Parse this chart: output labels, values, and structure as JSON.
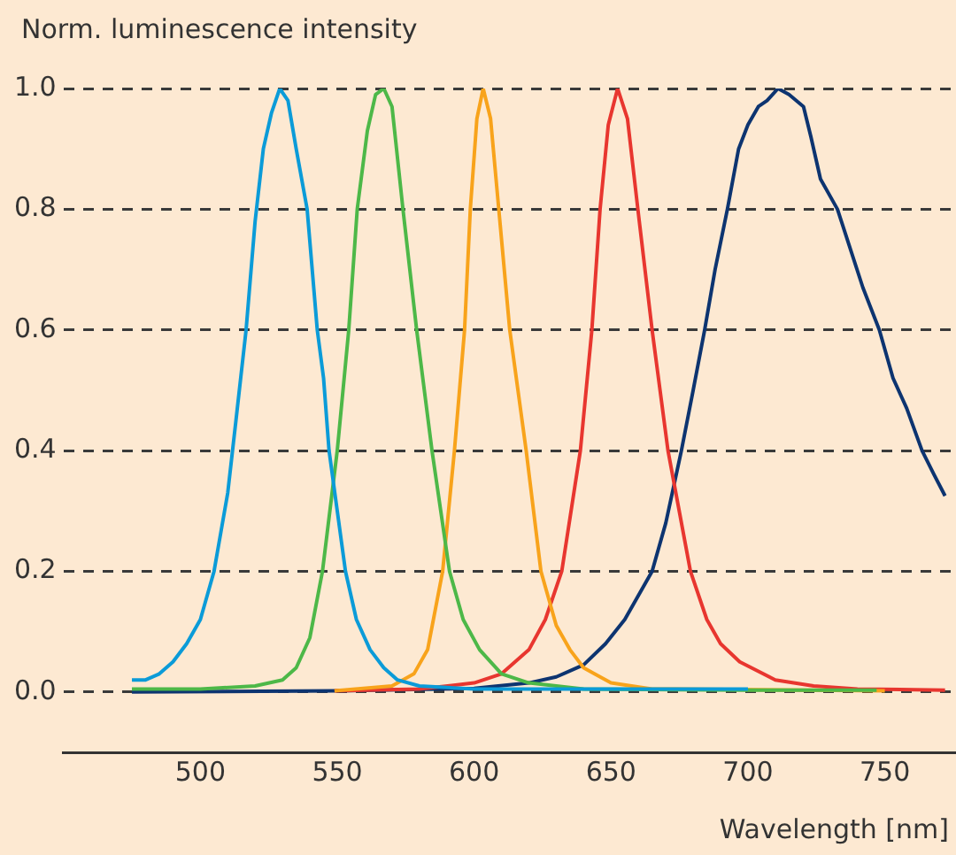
{
  "chart_data": {
    "type": "line",
    "xlabel": "Wavelength [nm]",
    "ylabel": "Norm. luminescence intensity",
    "xlim": [
      450,
      776
    ],
    "ylim": [
      -0.1,
      1.0
    ],
    "xticks": [
      500,
      550,
      600,
      650,
      700,
      750
    ],
    "yticks": [
      {
        "value": 0,
        "label": "0.0"
      },
      {
        "value": 0.2,
        "label": "0.2"
      },
      {
        "value": 0.4,
        "label": "0.4"
      },
      {
        "value": 0.6,
        "label": "0.6"
      },
      {
        "value": 0.8,
        "label": "0.8"
      },
      {
        "value": 1,
        "label": "1.0"
      }
    ],
    "grid": "y",
    "legend": false,
    "marker": "none",
    "line_style": "solid",
    "series": [
      {
        "color": "#0b9bd8",
        "x": [
          475,
          480,
          485,
          490,
          495,
          500,
          505,
          510,
          513,
          516.7,
          520,
          523,
          526,
          529,
          532,
          535,
          539,
          542.7,
          545,
          547,
          550,
          553,
          557,
          562,
          567,
          572,
          580,
          600,
          700
        ],
        "values": [
          0.02,
          0.02,
          0.03,
          0.05,
          0.08,
          0.12,
          0.2,
          0.33,
          0.45,
          0.6,
          0.78,
          0.9,
          0.96,
          1.0,
          0.98,
          0.9,
          0.8,
          0.6,
          0.52,
          0.4,
          0.3,
          0.2,
          0.12,
          0.07,
          0.04,
          0.02,
          0.01,
          0.005,
          0.005
        ]
      },
      {
        "color": "#4db848",
        "x": [
          475,
          500,
          520,
          530,
          535,
          540,
          544.6,
          550,
          554.2,
          557.3,
          561,
          564,
          567,
          570,
          574,
          579,
          584.6,
          591,
          596,
          602,
          610,
          620,
          640,
          700,
          747
        ],
        "values": [
          0.005,
          0.005,
          0.01,
          0.02,
          0.04,
          0.09,
          0.2,
          0.4,
          0.6,
          0.8,
          0.93,
          0.99,
          1.0,
          0.97,
          0.8,
          0.6,
          0.4,
          0.2,
          0.12,
          0.07,
          0.03,
          0.015,
          0.005,
          0.003,
          0.003
        ]
      },
      {
        "color": "#f8a31b",
        "x": [
          549,
          570,
          578,
          583,
          588.5,
          592.8,
          596.5,
          598.6,
          601,
          603.3,
          606,
          609,
          613,
          619,
          624.4,
          630,
          635,
          640,
          650,
          665,
          750
        ],
        "values": [
          0.002,
          0.01,
          0.03,
          0.07,
          0.2,
          0.4,
          0.6,
          0.8,
          0.95,
          1.0,
          0.95,
          0.8,
          0.6,
          0.4,
          0.2,
          0.11,
          0.07,
          0.04,
          0.015,
          0.005,
          0.002
        ]
      },
      {
        "color": "#e8362f",
        "x": [
          549,
          580,
          600,
          610,
          620,
          626,
          632,
          638.8,
          643,
          646,
          649,
          652.4,
          656,
          659.8,
          665,
          670.8,
          679,
          685,
          690,
          697,
          710,
          724,
          740,
          772
        ],
        "values": [
          0.002,
          0.005,
          0.015,
          0.03,
          0.07,
          0.12,
          0.2,
          0.4,
          0.6,
          0.8,
          0.94,
          1.0,
          0.95,
          0.8,
          0.6,
          0.4,
          0.2,
          0.12,
          0.08,
          0.05,
          0.02,
          0.01,
          0.005,
          0.003
        ]
      },
      {
        "color": "#0d3470",
        "x": [
          475,
          550,
          600,
          620,
          630,
          640,
          648,
          655,
          660,
          665,
          670,
          675.7,
          680,
          684.2,
          688,
          692.5,
          696.6,
          700,
          703.8,
          707,
          711,
          715,
          720.3,
          723,
          726.5,
          732.7,
          737,
          742,
          748,
          753,
          758,
          763.6,
          768,
          772
        ],
        "values": [
          0,
          0.002,
          0.006,
          0.015,
          0.025,
          0.045,
          0.08,
          0.12,
          0.16,
          0.2,
          0.28,
          0.4,
          0.5,
          0.6,
          0.7,
          0.8,
          0.9,
          0.94,
          0.97,
          0.98,
          1.0,
          0.99,
          0.97,
          0.92,
          0.85,
          0.8,
          0.74,
          0.67,
          0.6,
          0.52,
          0.47,
          0.4,
          0.36,
          0.325
        ]
      }
    ]
  }
}
